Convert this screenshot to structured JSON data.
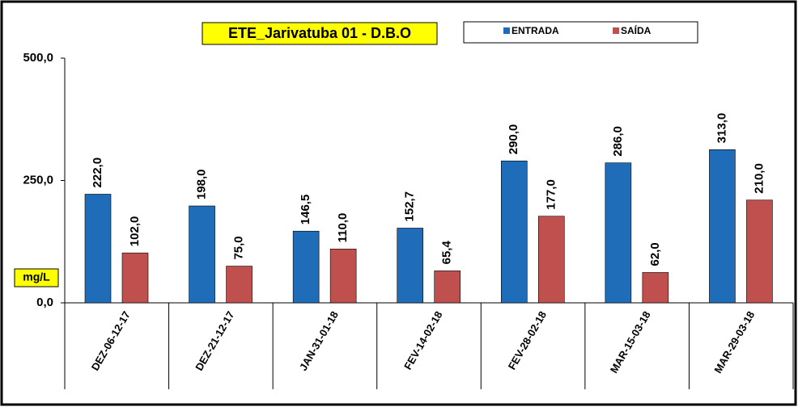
{
  "chart_data": {
    "type": "bar",
    "title": "ETE_Jarivatuba 01 - D.B.O",
    "y_label": "mg/L",
    "categories": [
      "DEZ-06-12-17",
      "DEZ-21-12-17",
      "JAN-31-01-18",
      "FEV-14-02-18",
      "FEV-28-02-18",
      "MAR-15-03-18",
      "MAR-29-03-18"
    ],
    "series": [
      {
        "name": "ENTRADA",
        "color": "#1f6cb8",
        "values": [
          222,
          198,
          146.5,
          152.7,
          290,
          286,
          313
        ],
        "value_labels": [
          "222,0",
          "198,0",
          "146,5",
          "152,7",
          "290,0",
          "286,0",
          "313,0"
        ]
      },
      {
        "name": "SAÍDA",
        "color": "#c0504d",
        "values": [
          102,
          75,
          110,
          65.4,
          177,
          62,
          210
        ],
        "value_labels": [
          "102,0",
          "75,0",
          "110,0",
          "65,4",
          "177,0",
          "62,0",
          "210,0"
        ]
      }
    ],
    "ylim": [
      0,
      500
    ],
    "yticks": [
      {
        "value": 0,
        "label": "0,0"
      },
      {
        "value": 250,
        "label": "250,0"
      },
      {
        "value": 500,
        "label": "500,0"
      }
    ],
    "legend": "top"
  }
}
